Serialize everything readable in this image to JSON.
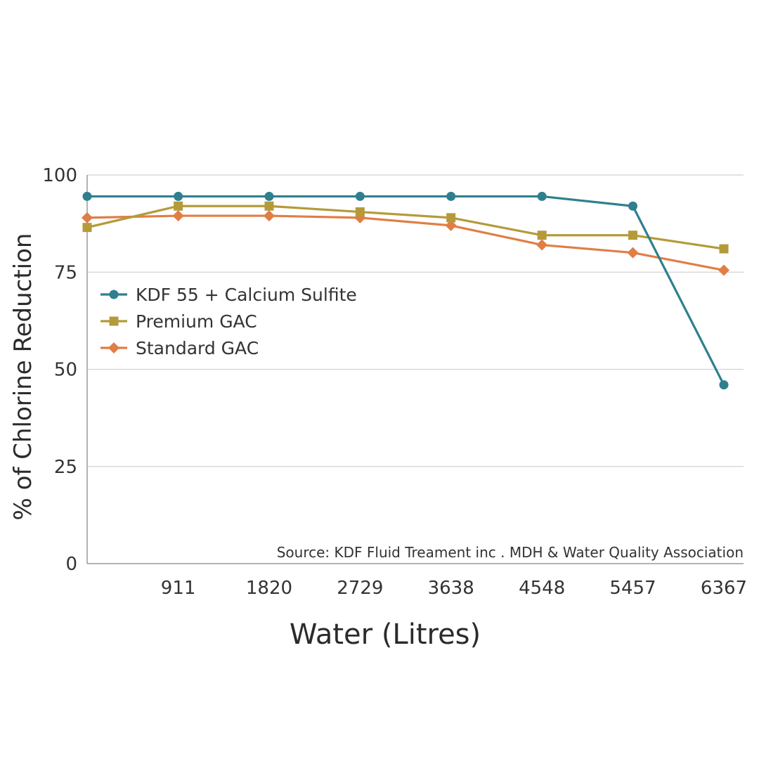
{
  "chart_data": {
    "type": "line",
    "title": "",
    "xlabel": "Water (Litres)",
    "ylabel": "% of Chlorine Reduction",
    "x": [
      0,
      911,
      1820,
      2729,
      3638,
      4548,
      5457,
      6367
    ],
    "xtick_labels": [
      "911",
      "1820",
      "2729",
      "3638",
      "4548",
      "5457",
      "6367"
    ],
    "ylim": [
      0,
      100
    ],
    "yticks": [
      0,
      25,
      50,
      75,
      100
    ],
    "grid": "horizontal",
    "legend_position": "upper-left",
    "source": "Source: KDF Fluid Treament inc . MDH & Water Quality Association",
    "series": [
      {
        "name": "KDF 55 + Calcium Sulfite",
        "marker": "circle",
        "color": "#2f7f8f",
        "values": [
          94.5,
          94.5,
          94.5,
          94.5,
          94.5,
          94.5,
          92,
          46
        ]
      },
      {
        "name": "Premium GAC",
        "marker": "square",
        "color": "#b59a3a",
        "values": [
          86.5,
          92,
          92,
          90.5,
          89,
          84.5,
          84.5,
          81
        ]
      },
      {
        "name": "Standard GAC",
        "marker": "diamond",
        "color": "#e07e45",
        "values": [
          89,
          89.5,
          89.5,
          89,
          87,
          82,
          80,
          75.5
        ]
      }
    ]
  }
}
